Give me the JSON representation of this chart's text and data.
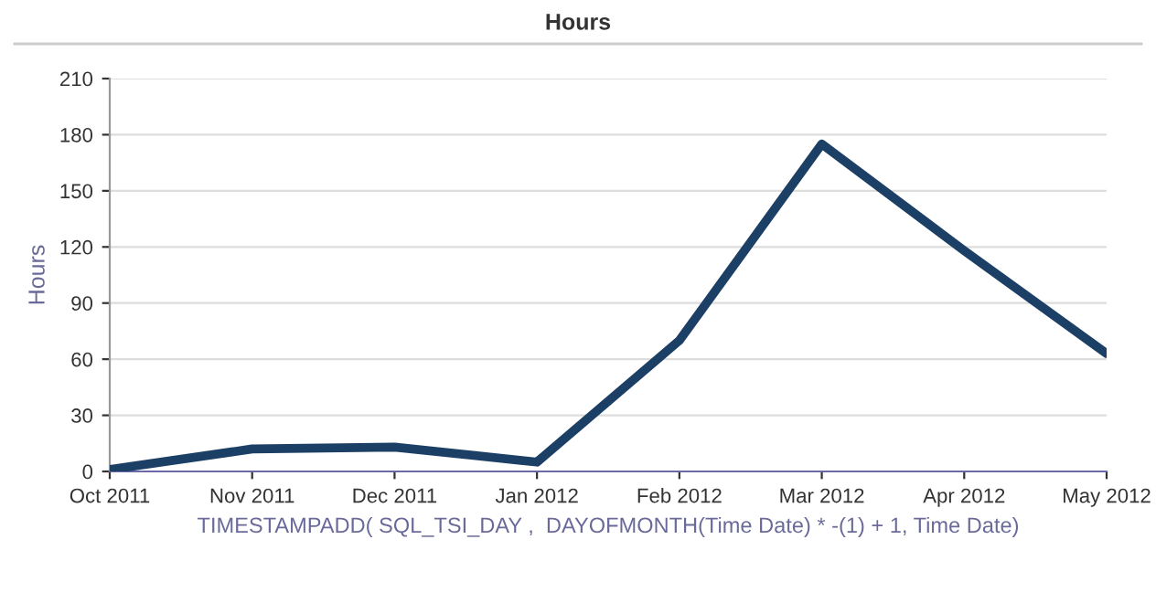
{
  "chart_data": {
    "type": "line",
    "title": "Hours",
    "xlabel": "TIMESTAMPADD( SQL_TSI_DAY ,  DAYOFMONTH(Time Date) * -(1) + 1, Time Date)",
    "ylabel": "Hours",
    "categories": [
      "Oct 2011",
      "Nov 2011",
      "Dec 2011",
      "Jan 2012",
      "Feb 2012",
      "Mar 2012",
      "Apr 2012",
      "May 2012"
    ],
    "series": [
      {
        "color": "#1c3f66",
        "values": [
          1,
          12,
          13,
          5,
          70,
          175,
          118,
          63
        ]
      }
    ],
    "ylim": [
      0,
      210
    ],
    "yticks": [
      0,
      30,
      60,
      90,
      120,
      150,
      180,
      210
    ],
    "grid": "y",
    "marker": "none",
    "line_style": "solid",
    "legend": false
  }
}
